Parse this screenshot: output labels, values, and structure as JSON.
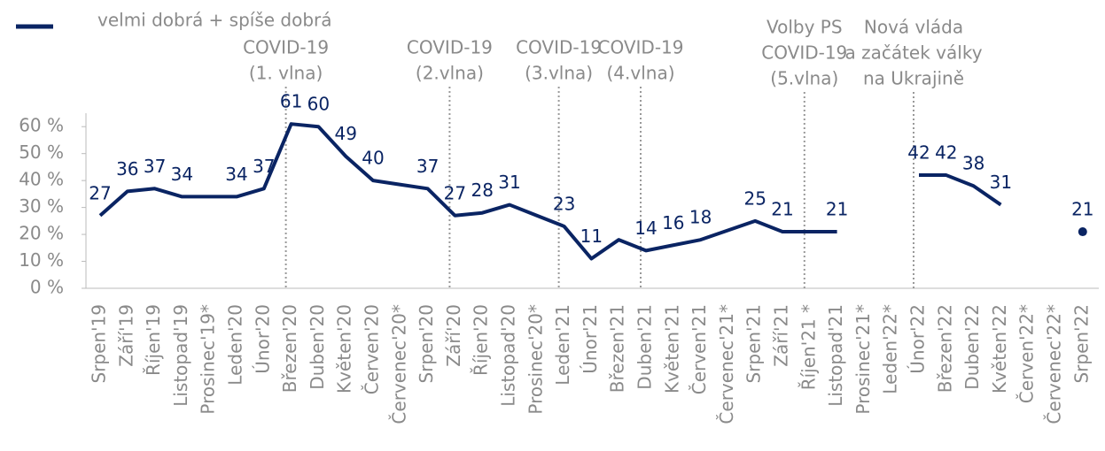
{
  "chart_data": {
    "type": "line",
    "categories": [
      "Srpen'19",
      "Září'19",
      "Říjen'19",
      "Listopad'19",
      "Prosinec'19*",
      "Leden'20",
      "Únor'20",
      "Březen'20",
      "Duben'20",
      "Květen'20",
      "Červen'20",
      "Červenec'20*",
      "Srpen'20",
      "Září'20",
      "Říjen'20",
      "Listopad'20",
      "Prosinec'20*",
      "Leden'21",
      "Únor'21",
      "Březen'21",
      "Duben'21",
      "Květen'21",
      "Červen'21",
      "Červenec'21*",
      "Srpen'21",
      "Září'21",
      "Říjen'21 *",
      "Listopad'21",
      "Prosinec'21*",
      "Leden'22*",
      "Únor'22",
      "Březen'22",
      "Duben'22",
      "Květen'22",
      "Červen'22*",
      "Červenec'22*",
      "Srpen'22"
    ],
    "series": [
      {
        "name": "velmi dobrá + spíše dobrá",
        "color": "#0a2463",
        "values": [
          27,
          36,
          37,
          34,
          34,
          34,
          37,
          61,
          60,
          49,
          40,
          38.5,
          37,
          27,
          28,
          31,
          27,
          23,
          11,
          18,
          14,
          16,
          18,
          21.5,
          25,
          21,
          21,
          21,
          null,
          null,
          42,
          42,
          38,
          31,
          null,
          null,
          21
        ],
        "value_labels": [
          27,
          36,
          37,
          34,
          null,
          34,
          37,
          61,
          60,
          49,
          40,
          null,
          37,
          27,
          28,
          31,
          null,
          23,
          11,
          null,
          14,
          16,
          18,
          null,
          25,
          21,
          null,
          21,
          null,
          null,
          42,
          42,
          38,
          31,
          null,
          null,
          21
        ]
      }
    ],
    "ylim": [
      0,
      65
    ],
    "yticks": [
      {
        "value": 0,
        "label": "0 %"
      },
      {
        "value": 10,
        "label": "10 %"
      },
      {
        "value": 20,
        "label": "20 %"
      },
      {
        "value": 30,
        "label": "30 %"
      },
      {
        "value": 40,
        "label": "40 %"
      },
      {
        "value": 50,
        "label": "50 %"
      },
      {
        "value": 60,
        "label": "60 %"
      }
    ],
    "legend": "top-left",
    "annotations": [
      {
        "category": "Březen'20",
        "lines": [
          "COVID-19",
          "(1. vlna)"
        ]
      },
      {
        "category": "Září'20",
        "lines": [
          "COVID-19",
          "(2.vlna)"
        ]
      },
      {
        "category": "Leden'21",
        "lines": [
          "COVID-19",
          "(3.vlna)"
        ]
      },
      {
        "category": "Duben'21",
        "lines": [
          "COVID-19",
          "(4.vlna)"
        ]
      },
      {
        "category": "Říjen'21 *",
        "lines": [
          "Volby PS",
          "COVID-19",
          "(5.vlna)"
        ]
      },
      {
        "category": "Únor'22",
        "lines": [
          "Nová vláda",
          "a začátek války",
          "na Ukrajině"
        ]
      }
    ]
  }
}
